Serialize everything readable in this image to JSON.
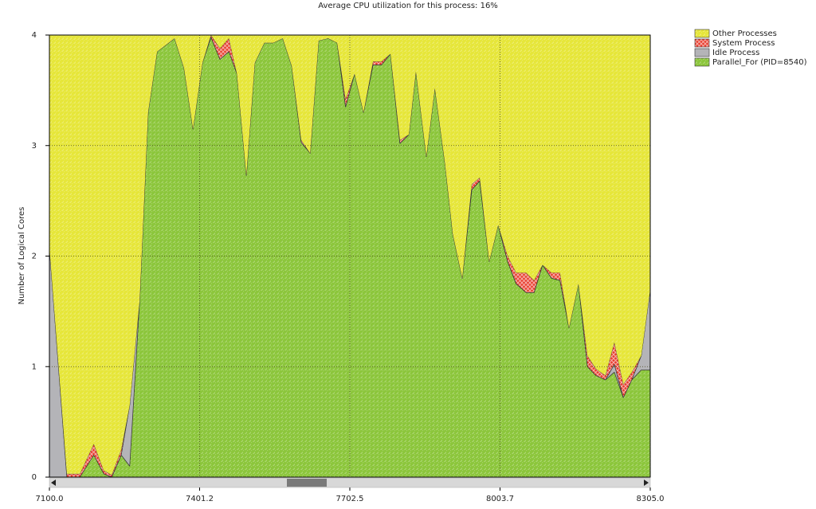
{
  "chart_data": {
    "type": "stacked_area",
    "title": "Average CPU utilization for this process: 16%",
    "y_label": "Number of Logical Cores",
    "x": [
      7100,
      7135,
      7161,
      7189,
      7209,
      7225,
      7244,
      7261,
      7281,
      7298,
      7316,
      7351,
      7370,
      7388,
      7407,
      7424,
      7442,
      7460,
      7476,
      7495,
      7512,
      7531,
      7549,
      7568,
      7586,
      7605,
      7623,
      7640,
      7659,
      7677,
      7694,
      7712,
      7730,
      7749,
      7766,
      7784,
      7803,
      7821,
      7835,
      7856,
      7873,
      7893,
      7909,
      7928,
      7947,
      7963,
      7982,
      8000,
      8019,
      8036,
      8056,
      8072,
      8089,
      8107,
      8124,
      8142,
      8161,
      8179,
      8196,
      8215,
      8233,
      8251,
      8268,
      8287,
      8305
    ],
    "series": [
      {
        "name": "Parallel_For (PID=8540)",
        "color": "#8cc63c",
        "pattern": "hatch",
        "values": [
          0,
          0,
          0,
          0.2,
          0.03,
          0,
          0.2,
          0.1,
          1.6,
          3.3,
          3.85,
          3.97,
          3.7,
          3.15,
          3.75,
          3.98,
          3.78,
          3.85,
          3.65,
          2.73,
          3.75,
          3.93,
          3.93,
          3.97,
          3.72,
          3.03,
          2.93,
          3.95,
          3.97,
          3.93,
          3.35,
          3.65,
          3.3,
          3.73,
          3.73,
          3.83,
          3.02,
          3.1,
          3.67,
          2.9,
          3.52,
          2.85,
          2.2,
          1.8,
          2.6,
          2.68,
          1.95,
          2.28,
          1.95,
          1.75,
          1.67,
          1.67,
          1.92,
          1.8,
          1.78,
          1.35,
          1.75,
          1.0,
          0.92,
          0.88,
          0.95,
          0.72,
          0.88,
          0.97,
          0.97
        ]
      },
      {
        "name": "Idle Process",
        "color": "#b4b4b8",
        "pattern": "solid",
        "values": [
          2.08,
          0,
          0,
          0,
          0,
          0,
          0,
          0.55,
          0,
          0,
          0,
          0,
          0,
          0,
          0,
          0,
          0,
          0,
          0,
          0,
          0,
          0,
          0,
          0,
          0,
          0,
          0,
          0,
          0,
          0,
          0,
          0,
          0,
          0,
          0,
          0,
          0,
          0,
          0,
          0,
          0,
          0,
          0,
          0,
          0,
          0,
          0,
          0,
          0,
          0,
          0,
          0,
          0,
          0,
          0,
          0,
          0,
          0,
          0,
          0,
          0.07,
          0,
          0,
          0.13,
          0.73
        ]
      },
      {
        "name": "System Process",
        "color": "#e83c2c",
        "pattern": "cross",
        "values": [
          0,
          0.03,
          0.03,
          0.1,
          0.03,
          0.02,
          0.05,
          0,
          0,
          0,
          0,
          0,
          0,
          0,
          0,
          0.02,
          0.1,
          0.12,
          0,
          0,
          0,
          0,
          0,
          0,
          0,
          0.02,
          0,
          0,
          0,
          0,
          0.07,
          0,
          0,
          0.03,
          0.03,
          0,
          0.03,
          0,
          0,
          0,
          0,
          0,
          0,
          0,
          0.05,
          0.03,
          0,
          0,
          0.05,
          0.1,
          0.18,
          0.11,
          0,
          0.05,
          0.07,
          0,
          0,
          0.1,
          0.06,
          0.04,
          0.2,
          0.12,
          0.07,
          0,
          0
        ]
      },
      {
        "name": "Other Processes",
        "color": "#e6e63a",
        "pattern": "hatch",
        "values": [
          1.92,
          3.97,
          3.97,
          3.7,
          3.94,
          3.98,
          3.75,
          3.35,
          2.4,
          0.7,
          0.15,
          0.03,
          0.3,
          0.85,
          0.25,
          0,
          0.12,
          0.03,
          0.35,
          1.27,
          0.25,
          0.07,
          0.07,
          0.03,
          0.28,
          0.95,
          1.07,
          0.05,
          0.03,
          0.07,
          0.58,
          0.35,
          0.7,
          0.24,
          0.24,
          0.17,
          0.95,
          0.9,
          0.33,
          1.1,
          0.48,
          1.15,
          1.8,
          2.2,
          1.35,
          1.29,
          2.05,
          1.72,
          2.0,
          2.15,
          2.15,
          2.22,
          2.08,
          2.15,
          2.15,
          2.65,
          2.25,
          2.9,
          3.02,
          3.08,
          2.78,
          3.16,
          3.05,
          2.9,
          2.3
        ]
      }
    ],
    "legend_order": [
      3,
      2,
      1,
      0
    ],
    "xlim": [
      7100,
      8305
    ],
    "xticks": [
      {
        "value": 7100,
        "label": "7100.0"
      },
      7401.2,
      7702.5,
      8003.7,
      {
        "value": 8305,
        "label": "8305.0"
      }
    ],
    "ylim": [
      0,
      4
    ],
    "yticks": [
      0,
      1,
      2,
      3,
      4
    ],
    "grid": true
  }
}
